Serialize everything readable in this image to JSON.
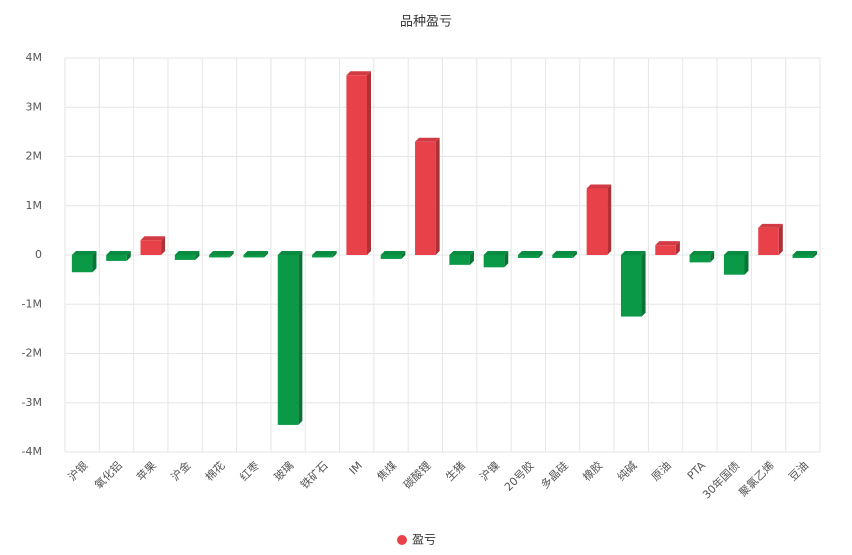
{
  "chart_data": {
    "type": "bar",
    "title": "品种盈亏",
    "categories": [
      "沪银",
      "氧化铝",
      "苹果",
      "沪金",
      "棉花",
      "红枣",
      "玻璃",
      "铁矿石",
      "IM",
      "焦煤",
      "碳酸锂",
      "生猪",
      "沪镍",
      "20号胶",
      "多晶硅",
      "橡胶",
      "纯碱",
      "原油",
      "PTA",
      "30年国债",
      "聚氯乙烯",
      "豆油"
    ],
    "series": [
      {
        "name": "盈亏",
        "color": "#e8414a",
        "values": [
          -350000,
          -120000,
          300000,
          -100000,
          -50000,
          -50000,
          -3450000,
          -50000,
          3650000,
          -80000,
          2300000,
          -200000,
          -250000,
          -60000,
          -60000,
          1350000,
          -1250000,
          200000,
          -150000,
          -400000,
          550000,
          -60000
        ]
      }
    ],
    "negative_color": "#0a9a47",
    "ylim": [
      -4000000,
      4000000
    ],
    "yticks": [
      {
        "value": -4000000,
        "label": "-4M"
      },
      {
        "value": -3000000,
        "label": "-3M"
      },
      {
        "value": -2000000,
        "label": "-2M"
      },
      {
        "value": -1000000,
        "label": "-1M"
      },
      0,
      {
        "value": 1000000,
        "label": "1M"
      },
      {
        "value": 2000000,
        "label": "2M"
      },
      {
        "value": 3000000,
        "label": "3M"
      },
      {
        "value": 4000000,
        "label": "4M"
      }
    ],
    "grid": true
  }
}
